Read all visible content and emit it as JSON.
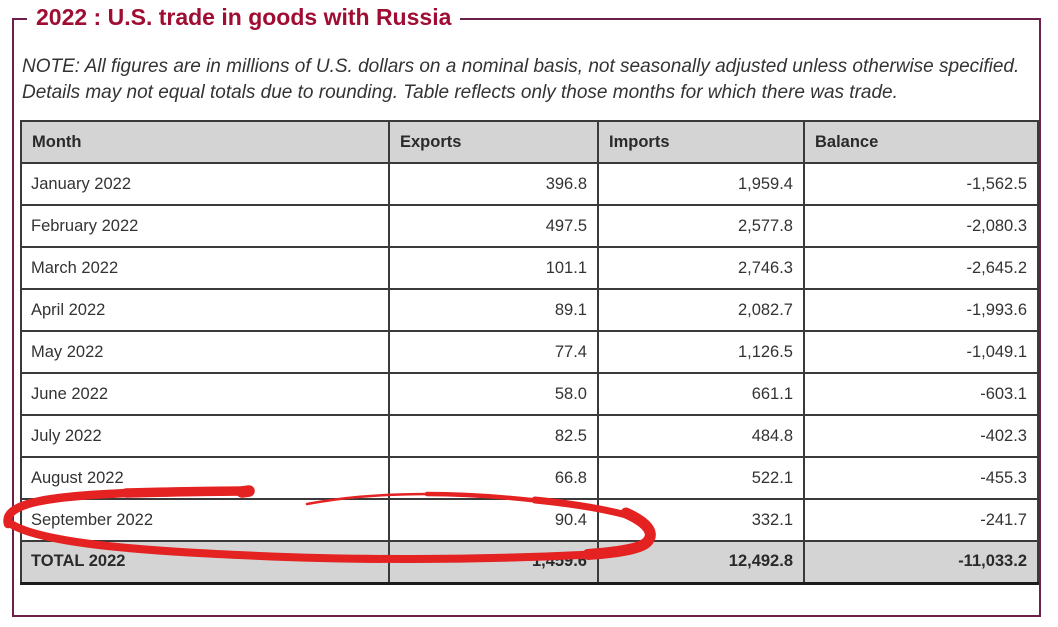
{
  "page": {
    "title": "2022 : U.S. trade in goods with Russia",
    "note_line1": "NOTE: All figures are in millions of U.S. dollars on a nominal basis, not seasonally adjusted unless otherwise specified.",
    "note_line2": "Details may not equal totals due to rounding. Table reflects only those months for which there was trade.",
    "border_color": "#6d1f4c",
    "title_color": "#a00d32"
  },
  "table": {
    "columns": [
      "Month",
      "Exports",
      "Imports",
      "Balance"
    ],
    "header_bg": "#d4d4d4",
    "rows": [
      {
        "month": "January 2022",
        "exports": "396.8",
        "imports": "1,959.4",
        "balance": "-1,562.5"
      },
      {
        "month": "February 2022",
        "exports": "497.5",
        "imports": "2,577.8",
        "balance": "-2,080.3"
      },
      {
        "month": "March 2022",
        "exports": "101.1",
        "imports": "2,746.3",
        "balance": "-2,645.2"
      },
      {
        "month": "April 2022",
        "exports": "89.1",
        "imports": "2,082.7",
        "balance": "-1,993.6"
      },
      {
        "month": "May 2022",
        "exports": "77.4",
        "imports": "1,126.5",
        "balance": "-1,049.1"
      },
      {
        "month": "June 2022",
        "exports": "58.0",
        "imports": "661.1",
        "balance": "-603.1"
      },
      {
        "month": "July 2022",
        "exports": "82.5",
        "imports": "484.8",
        "balance": "-402.3"
      },
      {
        "month": "August 2022",
        "exports": "66.8",
        "imports": "522.1",
        "balance": "-455.3"
      },
      {
        "month": "September 2022",
        "exports": "90.4",
        "imports": "332.1",
        "balance": "-241.7"
      }
    ],
    "total": {
      "month": "TOTAL 2022",
      "exports": "1,459.6",
      "imports": "12,492.8",
      "balance": "-11,033.2"
    }
  },
  "annotation": {
    "type": "hand-drawn-circle",
    "highlights": "September 2022 exports value 90.4",
    "color": "#e42222"
  }
}
